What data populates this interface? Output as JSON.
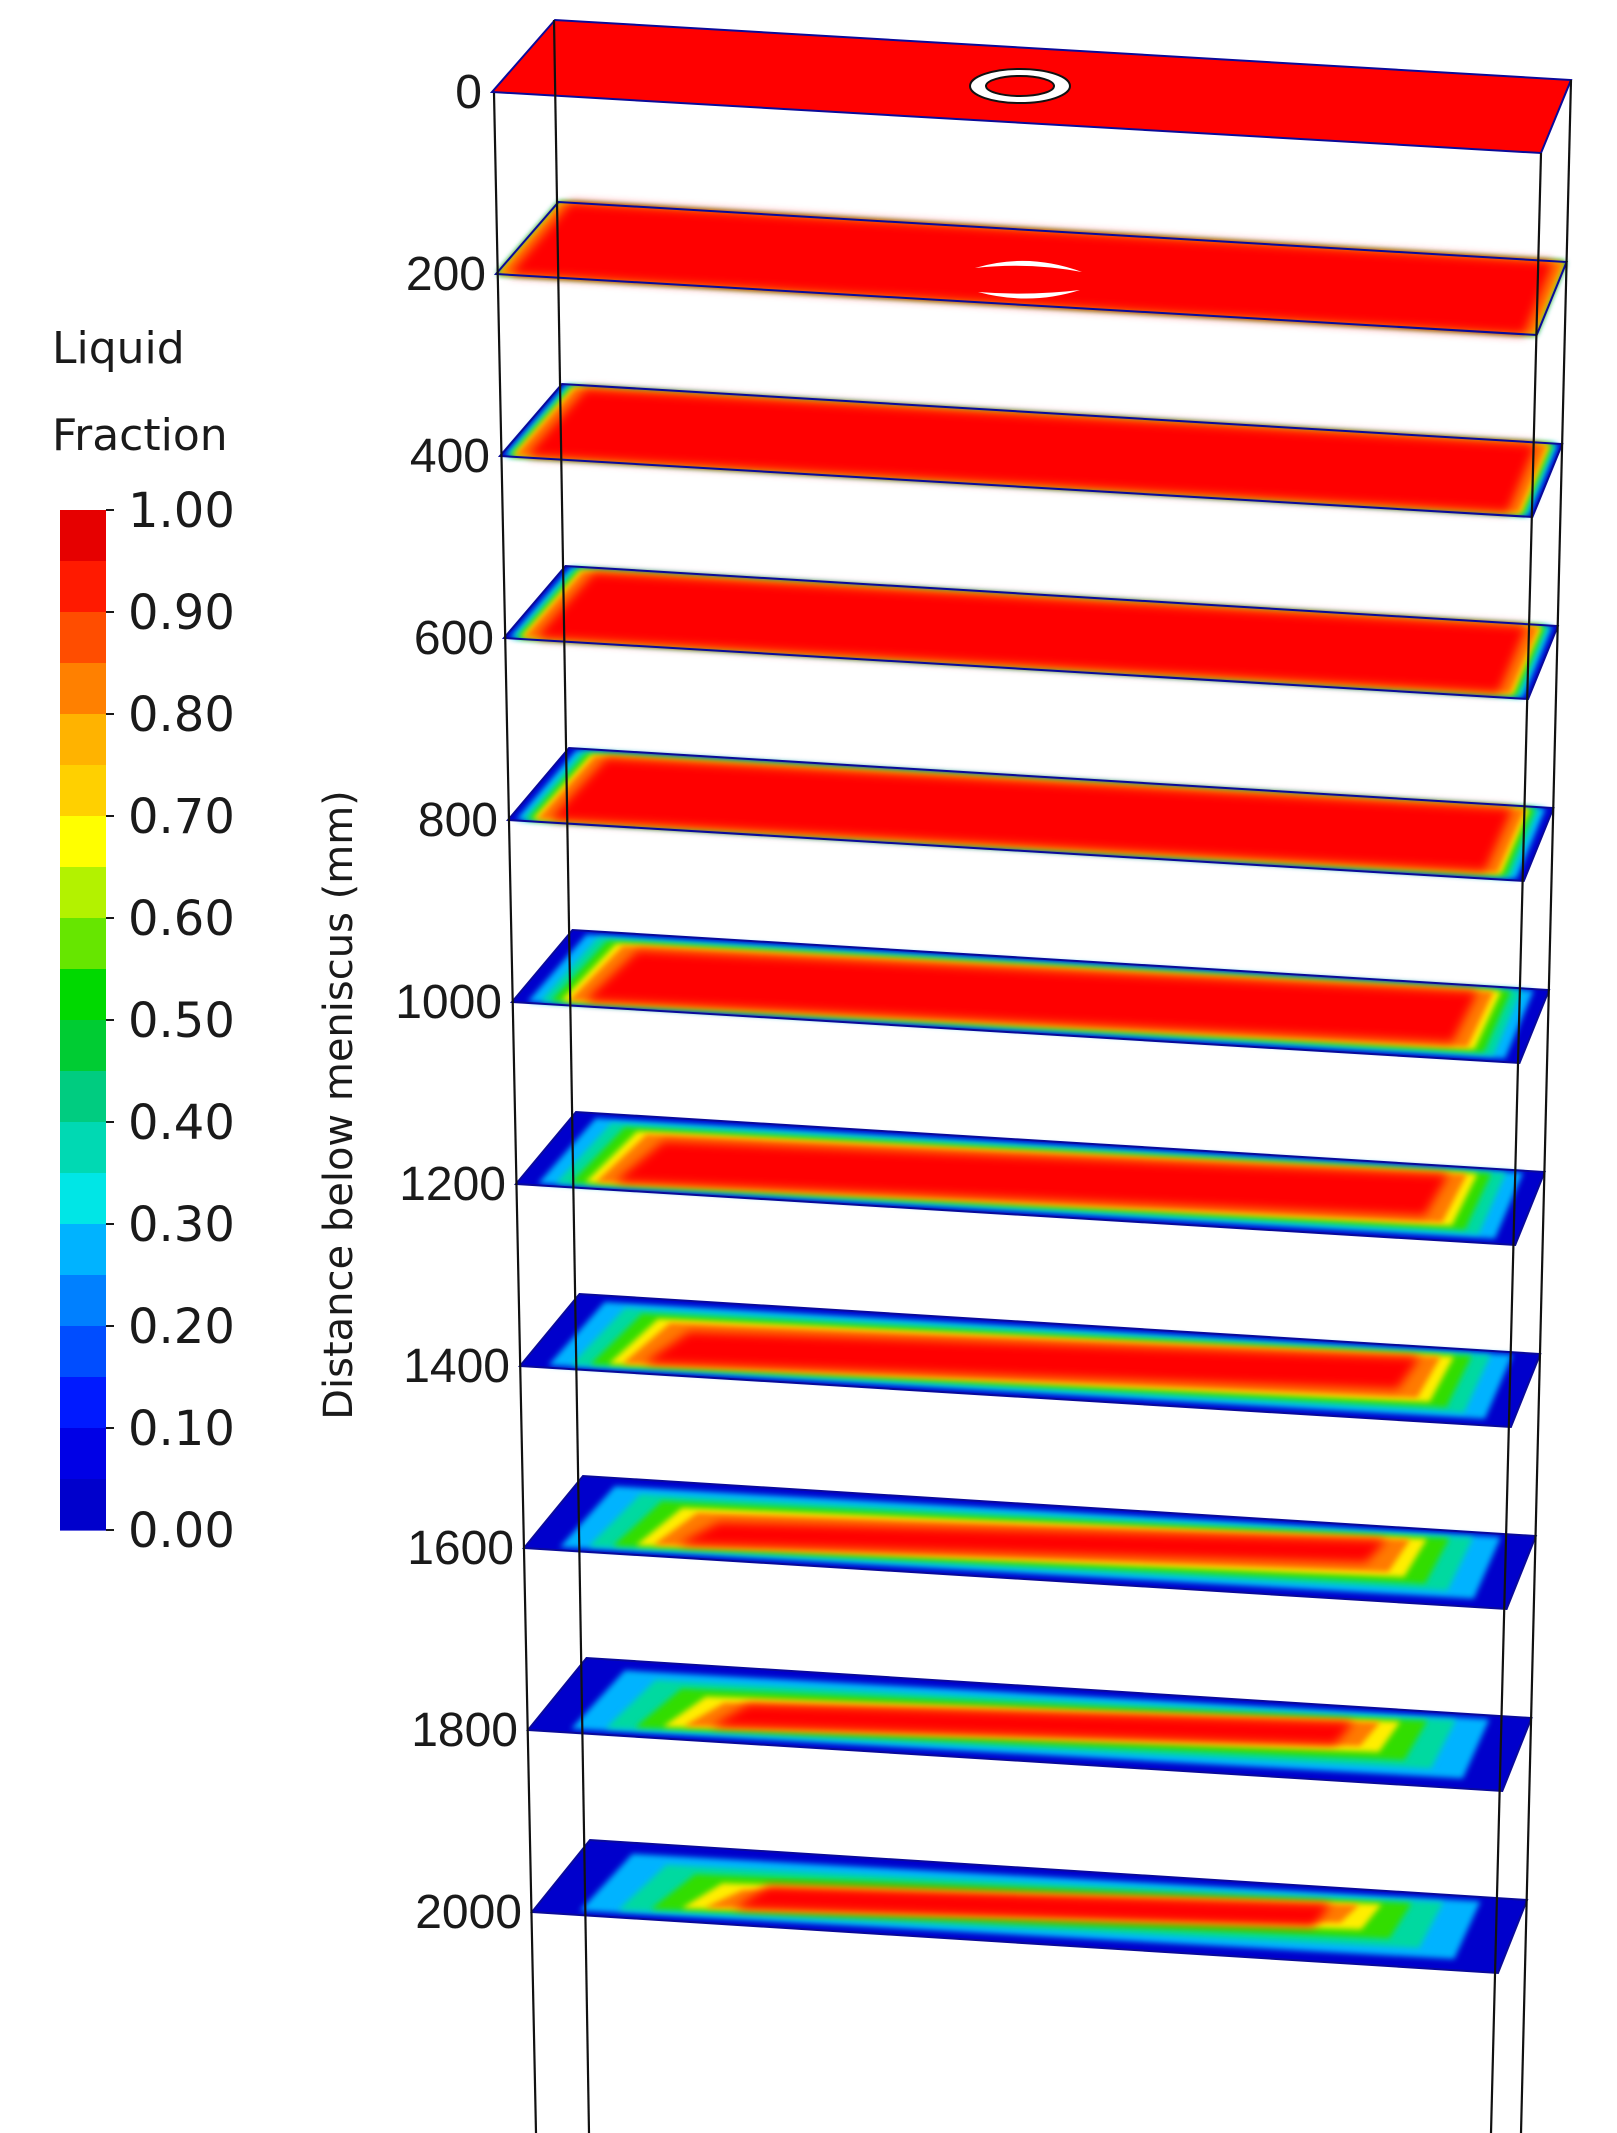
{
  "legend": {
    "title_line1": "Liquid",
    "title_line2": "Fraction",
    "ticks": [
      "1.00",
      "0.90",
      "0.80",
      "0.70",
      "0.60",
      "0.50",
      "0.40",
      "0.30",
      "0.20",
      "0.10",
      "0.00"
    ],
    "colors": [
      "#e60000",
      "#ff1a00",
      "#ff4d00",
      "#ff8000",
      "#ffb300",
      "#ffd000",
      "#ffff00",
      "#b3f200",
      "#66e600",
      "#00d900",
      "#00cc33",
      "#00cc80",
      "#00d9b3",
      "#00e6e6",
      "#00b3ff",
      "#0080ff",
      "#004dff",
      "#001aff",
      "#0000e6",
      "#0000cc"
    ]
  },
  "axis": {
    "title": "Distance below meniscus (mm)"
  },
  "slices": [
    {
      "depth": "0",
      "red_fraction": 1.0,
      "inlet": "ring"
    },
    {
      "depth": "200",
      "red_fraction": 0.995,
      "inlet": "split"
    },
    {
      "depth": "400",
      "red_fraction": 0.97,
      "inlet": "none"
    },
    {
      "depth": "600",
      "red_fraction": 0.96,
      "inlet": "none"
    },
    {
      "depth": "800",
      "red_fraction": 0.94,
      "inlet": "none"
    },
    {
      "depth": "1000",
      "red_fraction": 0.88,
      "inlet": "none"
    },
    {
      "depth": "1200",
      "red_fraction": 0.83,
      "inlet": "none"
    },
    {
      "depth": "1400",
      "red_fraction": 0.78,
      "inlet": "none"
    },
    {
      "depth": "1600",
      "red_fraction": 0.72,
      "inlet": "none"
    },
    {
      "depth": "1800",
      "red_fraction": 0.66,
      "inlet": "none"
    },
    {
      "depth": "2000",
      "red_fraction": 0.62,
      "inlet": "none"
    }
  ],
  "colors": {
    "liquid": "#ff0000",
    "solid": "#0000cc",
    "frame": "#111111"
  }
}
